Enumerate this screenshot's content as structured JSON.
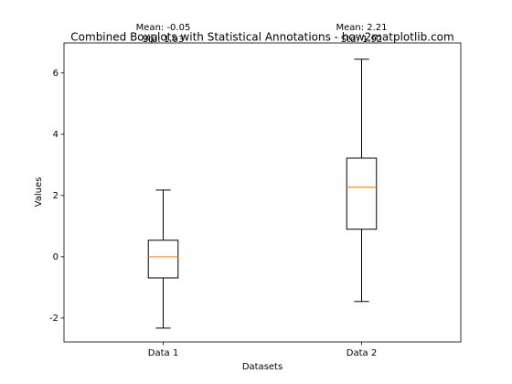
{
  "chart_data": {
    "type": "boxplot",
    "title": "Combined Boxplots with Statistical Annotations - how2matplotlib.com",
    "x_label": "Datasets",
    "y_label": "Values",
    "categories": [
      "Data 1",
      "Data 2"
    ],
    "boxes": [
      {
        "whisker_low": -2.33,
        "q1": -0.69,
        "median": 0.0,
        "q3": 0.54,
        "whisker_high": 2.18
      },
      {
        "whisker_low": -1.46,
        "q1": 0.9,
        "median": 2.27,
        "q3": 3.22,
        "whisker_high": 6.45
      }
    ],
    "annotations": [
      [
        "Mean: -0.05",
        "Std: 1.03"
      ],
      [
        "Mean: 2.21",
        "Std: 1.92"
      ]
    ],
    "box_color": "#000000",
    "median_color": "#ff7f0e",
    "xlim": [
      0.5,
      2.5
    ],
    "ylim": [
      -2.78,
      6.98
    ],
    "yticks": [
      -2,
      0,
      2,
      4,
      6
    ]
  }
}
